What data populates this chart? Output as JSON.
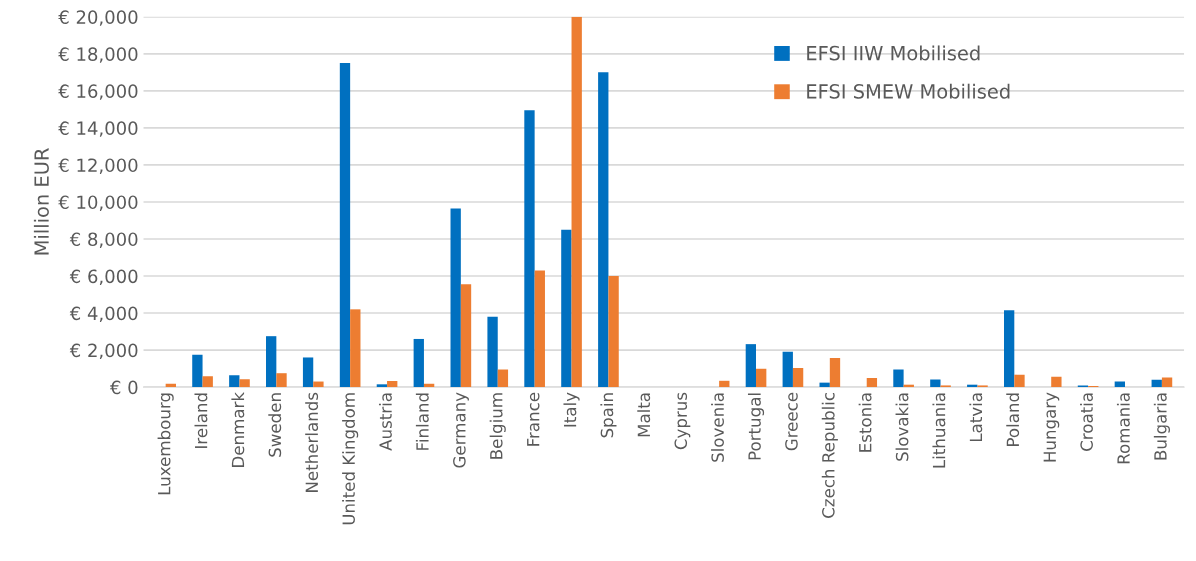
{
  "chart_data": {
    "type": "bar",
    "ylabel": "Million EUR",
    "categories": [
      "Luxembourg",
      "Ireland",
      "Denmark",
      "Sweden",
      "Netherlands",
      "United Kingdom",
      "Austria",
      "Finland",
      "Germany",
      "Belgium",
      "France",
      "Italy",
      "Spain",
      "Malta",
      "Cyprus",
      "Slovenia",
      "Portugal",
      "Greece",
      "Czech Republic",
      "Estonia",
      "Slovakia",
      "Lithuania",
      "Latvia",
      "Poland",
      "Hungary",
      "Croatia",
      "Romania",
      "Bulgaria"
    ],
    "series": [
      {
        "name": "EFSI IIW Mobilised",
        "color": "#0070c0",
        "values": [
          0,
          1750,
          640,
          2750,
          1600,
          17500,
          150,
          2600,
          9650,
          3800,
          14950,
          8500,
          17000,
          0,
          0,
          0,
          2320,
          1910,
          240,
          0,
          950,
          410,
          130,
          4150,
          0,
          90,
          300,
          390
        ]
      },
      {
        "name": "EFSI SMEW Mobilised",
        "color": "#ed7d31",
        "values": [
          180,
          580,
          420,
          750,
          300,
          4200,
          330,
          180,
          5550,
          950,
          6300,
          20000,
          6000,
          0,
          0,
          340,
          990,
          1030,
          1570,
          490,
          130,
          90,
          90,
          670,
          560,
          60,
          0,
          520
        ]
      }
    ],
    "ylim": [
      0,
      20000
    ],
    "yticks": [
      {
        "value": 0,
        "label": "€ 0"
      },
      {
        "value": 2000,
        "label": "€ 2,000"
      },
      {
        "value": 4000,
        "label": "€ 4,000"
      },
      {
        "value": 6000,
        "label": "€ 6,000"
      },
      {
        "value": 8000,
        "label": "€ 8,000"
      },
      {
        "value": 10000,
        "label": "€ 10,000"
      },
      {
        "value": 12000,
        "label": "€ 12,000"
      },
      {
        "value": 14000,
        "label": "€ 14,000"
      },
      {
        "value": 16000,
        "label": "€ 16,000"
      },
      {
        "value": 18000,
        "label": "€ 18,000"
      },
      {
        "value": 20000,
        "label": "€ 20,000"
      }
    ],
    "grid": "y",
    "legend": "top"
  }
}
